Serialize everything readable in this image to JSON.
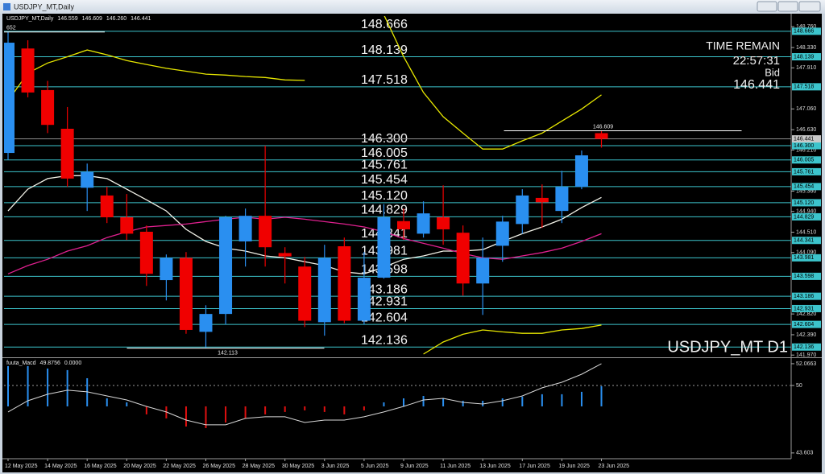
{
  "chart_data": [
    {
      "type": "candlestick",
      "symbol": "USDJPY_MT,Daily",
      "watermark": "USDJPY_MT D1",
      "annotations": [
        "652"
      ],
      "categories": [
        "12 May 2025",
        null,
        "14 May 2025",
        null,
        "16 May 2025",
        null,
        "20 May 2025",
        null,
        "22 May 2025",
        null,
        "26 May 2025",
        null,
        "28 May 2025",
        null,
        "30 May 2025",
        null,
        "3 Jun 2025",
        null,
        "5 Jun 2025",
        null,
        "9 Jun 2025",
        null,
        "11 Jun 2025",
        null,
        "13 Jun 2025",
        null,
        "17 Jun 2025",
        null,
        "19 Jun 2025",
        null,
        "23 Jun 2025"
      ],
      "open": [
        146.15,
        148.31,
        147.45,
        146.65,
        145.43,
        145.27,
        144.82,
        144.52,
        143.52,
        143.98,
        142.45,
        142.82,
        144.32,
        144.85,
        144.08,
        143.8,
        142.65,
        144.22,
        142.68,
        143.57,
        144.74,
        144.48,
        144.82,
        144.5,
        143.45,
        144.23,
        144.68,
        145.22,
        144.95,
        145.45,
        146.559
      ],
      "high": [
        148.652,
        148.48,
        147.64,
        147.1,
        145.93,
        145.45,
        145.3,
        144.65,
        144.05,
        144.1,
        143.0,
        144.85,
        145.0,
        146.3,
        144.2,
        144.0,
        144.25,
        144.4,
        144.1,
        145.09,
        145.0,
        145.15,
        145.48,
        144.65,
        144.4,
        144.85,
        145.4,
        145.5,
        145.78,
        146.2,
        146.609
      ],
      "low": [
        146.0,
        147.3,
        146.56,
        145.45,
        144.95,
        144.7,
        144.35,
        143.4,
        143.1,
        142.41,
        142.113,
        142.6,
        143.8,
        143.8,
        143.45,
        142.55,
        142.37,
        142.63,
        142.6,
        143.55,
        144.35,
        144.4,
        144.25,
        143.2,
        142.8,
        143.9,
        144.48,
        144.6,
        144.7,
        145.4,
        146.26
      ],
      "low_labels": [
        null,
        null,
        null,
        null,
        null,
        null,
        null,
        null,
        null,
        null,
        null,
        null,
        null,
        null,
        null,
        null,
        null,
        null,
        null,
        null,
        null,
        null,
        null,
        null,
        null,
        null,
        null,
        null,
        null,
        null,
        "146.260"
      ],
      "close": [
        148.43,
        147.4,
        146.73,
        145.62,
        145.76,
        144.82,
        144.48,
        143.65,
        143.98,
        142.49,
        142.82,
        144.82,
        144.85,
        144.2,
        144.01,
        142.68,
        143.98,
        142.68,
        143.57,
        144.82,
        144.57,
        144.9,
        144.57,
        143.45,
        143.98,
        144.73,
        145.27,
        145.13,
        145.45,
        146.1,
        146.441
      ],
      "up_color": "#2a8ff0",
      "down_color": "#f00000",
      "lines": [
        {
          "color": "#e8e800",
          "values": [
            147.23,
            147.8,
            148.01,
            148.14,
            148.28,
            148.18,
            148.06,
            147.98,
            147.9,
            147.84,
            147.78,
            147.76,
            147.73,
            147.71,
            147.66,
            147.65,
            null,
            null,
            null,
            149.01,
            148.14,
            147.4,
            146.9,
            146.56,
            146.23,
            146.23,
            146.4,
            146.56,
            146.81,
            147.06,
            147.35
          ]
        },
        {
          "color": "#e8e800",
          "values": [
            null,
            null,
            null,
            null,
            null,
            null,
            null,
            null,
            null,
            null,
            null,
            null,
            null,
            null,
            null,
            null,
            null,
            null,
            null,
            null,
            null,
            141.99,
            142.24,
            142.4,
            142.49,
            142.45,
            142.42,
            142.42,
            142.49,
            142.52,
            142.59
          ]
        },
        {
          "color": "#f2f2e8",
          "values": [
            144.95,
            145.4,
            145.62,
            145.68,
            145.68,
            145.62,
            145.4,
            145.18,
            144.95,
            144.57,
            144.32,
            144.18,
            144.12,
            144.02,
            143.98,
            143.9,
            143.82,
            143.69,
            143.65,
            143.79,
            143.95,
            144.02,
            144.12,
            144.12,
            144.15,
            144.32,
            144.48,
            144.62,
            144.78,
            145.02,
            145.23
          ]
        },
        {
          "color": "#e0208f",
          "values": [
            143.65,
            143.82,
            143.95,
            144.12,
            144.23,
            144.4,
            144.52,
            144.62,
            144.65,
            144.68,
            144.73,
            144.78,
            144.82,
            144.78,
            144.82,
            144.78,
            144.73,
            144.68,
            144.62,
            144.52,
            144.38,
            144.28,
            144.18,
            144.07,
            143.98,
            143.95,
            144.02,
            144.09,
            144.18,
            144.32,
            144.48
          ]
        }
      ],
      "level_color": "#3cc4cc",
      "levels": [
        148.666,
        148.139,
        147.518,
        {
          "value": 146.3,
          "label": "146.300"
        },
        146.005,
        145.761,
        145.454,
        {
          "value": 145.12,
          "label": "145.120"
        },
        144.829,
        144.341,
        143.981,
        143.598,
        143.186,
        142.931,
        142.604,
        142.136
      ],
      "ylim": [
        141.94,
        148.98
      ],
      "yticks": [
        {
          "value": 148.76,
          "label": "148.760"
        },
        {
          "value": 148.33,
          "label": "148.330"
        },
        {
          "value": 147.91,
          "label": "147.910"
        },
        {
          "value": 147.06,
          "label": "147.060"
        },
        {
          "value": 146.63,
          "label": "146.630"
        },
        {
          "value": 146.21,
          "label": "146.210"
        },
        {
          "value": 145.36,
          "label": "145.360"
        },
        {
          "value": 144.94,
          "label": "144.940"
        },
        {
          "value": 144.51,
          "label": "144.510"
        },
        {
          "value": 144.09,
          "label": "144.090"
        },
        {
          "value": 142.82,
          "label": "142.820"
        },
        {
          "value": 142.39,
          "label": "142.390"
        },
        {
          "value": 141.97,
          "label": "141.970"
        }
      ]
    },
    {
      "type": "macd",
      "title": "fuuta_Macd",
      "readout": [
        49.8756,
        {
          "value": 0,
          "label": "0.0000"
        }
      ],
      "ylim": [
        43.21,
        52.52
      ],
      "yticks": [
        52.0663,
        50,
        43.603
      ],
      "level": 50,
      "hist": {
        "highs": [
          51.84,
          51.84,
          51.61,
          51.46,
          50.69,
          48.78,
          48.4,
          48.02,
          48.02,
          48.02,
          48.02,
          48.02,
          48.02,
          48.02,
          48.02,
          48.02,
          48.02,
          48.02,
          48.02,
          48.4,
          48.78,
          49.01,
          48.78,
          48.55,
          48.55,
          48.78,
          48.94,
          49.17,
          49.17,
          49.4,
          49.93
        ],
        "lows": [
          48.02,
          48.02,
          48.02,
          48.02,
          48.02,
          48.02,
          48.02,
          47.26,
          46.88,
          46.11,
          45.96,
          46.49,
          46.88,
          47.26,
          47.49,
          47.64,
          47.49,
          47.26,
          47.64,
          48.02,
          48.02,
          48.02,
          48.02,
          48.02,
          48.02,
          48.02,
          48.02,
          48.02,
          48.02,
          48.02,
          48.02
        ],
        "colors": [
          "#2a8ff0",
          "#2a8ff0",
          "#2a8ff0",
          "#2a8ff0",
          "#2a8ff0",
          "#2a8ff0",
          "#2a8ff0",
          "#e01010",
          "#e01010",
          "#e01010",
          "#e01010",
          "#e01010",
          "#e01010",
          "#e01010",
          "#e01010",
          "#e01010",
          "#e01010",
          "#e01010",
          "#e01010",
          "#2a8ff0",
          "#2a8ff0",
          "#2a8ff0",
          "#2a8ff0",
          "#2a8ff0",
          "#2a8ff0",
          "#2a8ff0",
          "#2a8ff0",
          "#2a8ff0",
          "#2a8ff0",
          "#2a8ff0",
          "#2a8ff0"
        ]
      },
      "signal": {
        "color": "#d8d8d8",
        "values": [
          47.49,
          48.55,
          49.17,
          49.55,
          49.4,
          49.01,
          48.63,
          48.02,
          47.49,
          46.72,
          46.27,
          46.27,
          46.88,
          47.03,
          47.03,
          46.49,
          46.72,
          46.72,
          47.03,
          47.49,
          48.02,
          48.63,
          48.78,
          48.4,
          48.25,
          48.55,
          49.01,
          49.78,
          50.31,
          51.07,
          52.07
        ]
      }
    }
  ],
  "info": {
    "time_label": "TIME REMAIN",
    "time": "22:57:31",
    "bid_label": "Bid"
  }
}
